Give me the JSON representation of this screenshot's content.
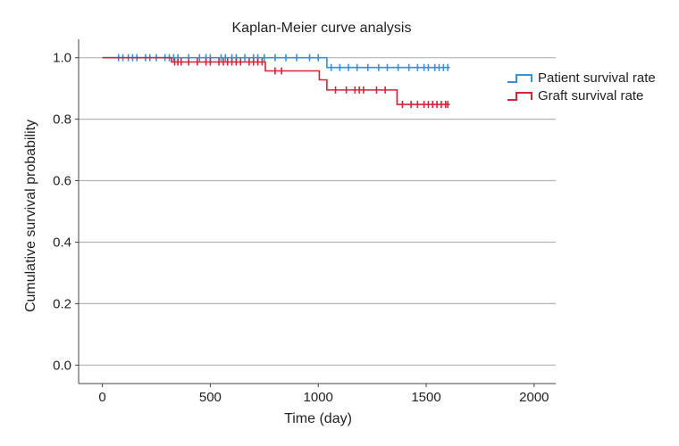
{
  "chart_data": {
    "type": "line",
    "title": "Kaplan-Meier curve analysis",
    "xlabel": "Time (day)",
    "ylabel": "Cumulative survival probability",
    "xlim": [
      -110,
      2100
    ],
    "ylim": [
      -0.06,
      1.06
    ],
    "xticks": [
      0,
      500,
      1000,
      1500,
      2000
    ],
    "yticks": [
      0.0,
      0.2,
      0.4,
      0.6,
      0.8,
      1.0
    ],
    "ytick_labels": [
      "0.0",
      "0.2",
      "0.4",
      "0.6",
      "0.8",
      "1.0"
    ],
    "grid": "horizontal",
    "legend_position": "top-right",
    "series": [
      {
        "name": "Patient survival rate",
        "color": "#3a8fd9",
        "steps": [
          [
            0,
            1.0
          ],
          [
            1040,
            0.968
          ],
          [
            1610,
            0.968
          ]
        ],
        "censored": [
          75,
          95,
          120,
          140,
          160,
          200,
          220,
          250,
          290,
          310,
          330,
          350,
          400,
          450,
          480,
          500,
          550,
          570,
          600,
          620,
          660,
          700,
          720,
          750,
          800,
          850,
          900,
          960,
          1000,
          1060,
          1100,
          1140,
          1180,
          1230,
          1280,
          1320,
          1370,
          1420,
          1460,
          1490,
          1510,
          1540,
          1560,
          1580,
          1600
        ]
      },
      {
        "name": "Graft survival rate",
        "color": "#d8213a",
        "steps": [
          [
            0,
            1.0
          ],
          [
            320,
            0.986
          ],
          [
            755,
            0.957
          ],
          [
            1005,
            0.928
          ],
          [
            1040,
            0.895
          ],
          [
            1365,
            0.848
          ],
          [
            1610,
            0.848
          ]
        ],
        "censored": [
          335,
          350,
          365,
          400,
          440,
          480,
          500,
          540,
          560,
          580,
          600,
          620,
          640,
          680,
          700,
          720,
          740,
          800,
          830,
          1080,
          1130,
          1170,
          1190,
          1210,
          1270,
          1310,
          1390,
          1430,
          1460,
          1490,
          1510,
          1530,
          1550,
          1570,
          1590,
          1600
        ]
      }
    ]
  }
}
